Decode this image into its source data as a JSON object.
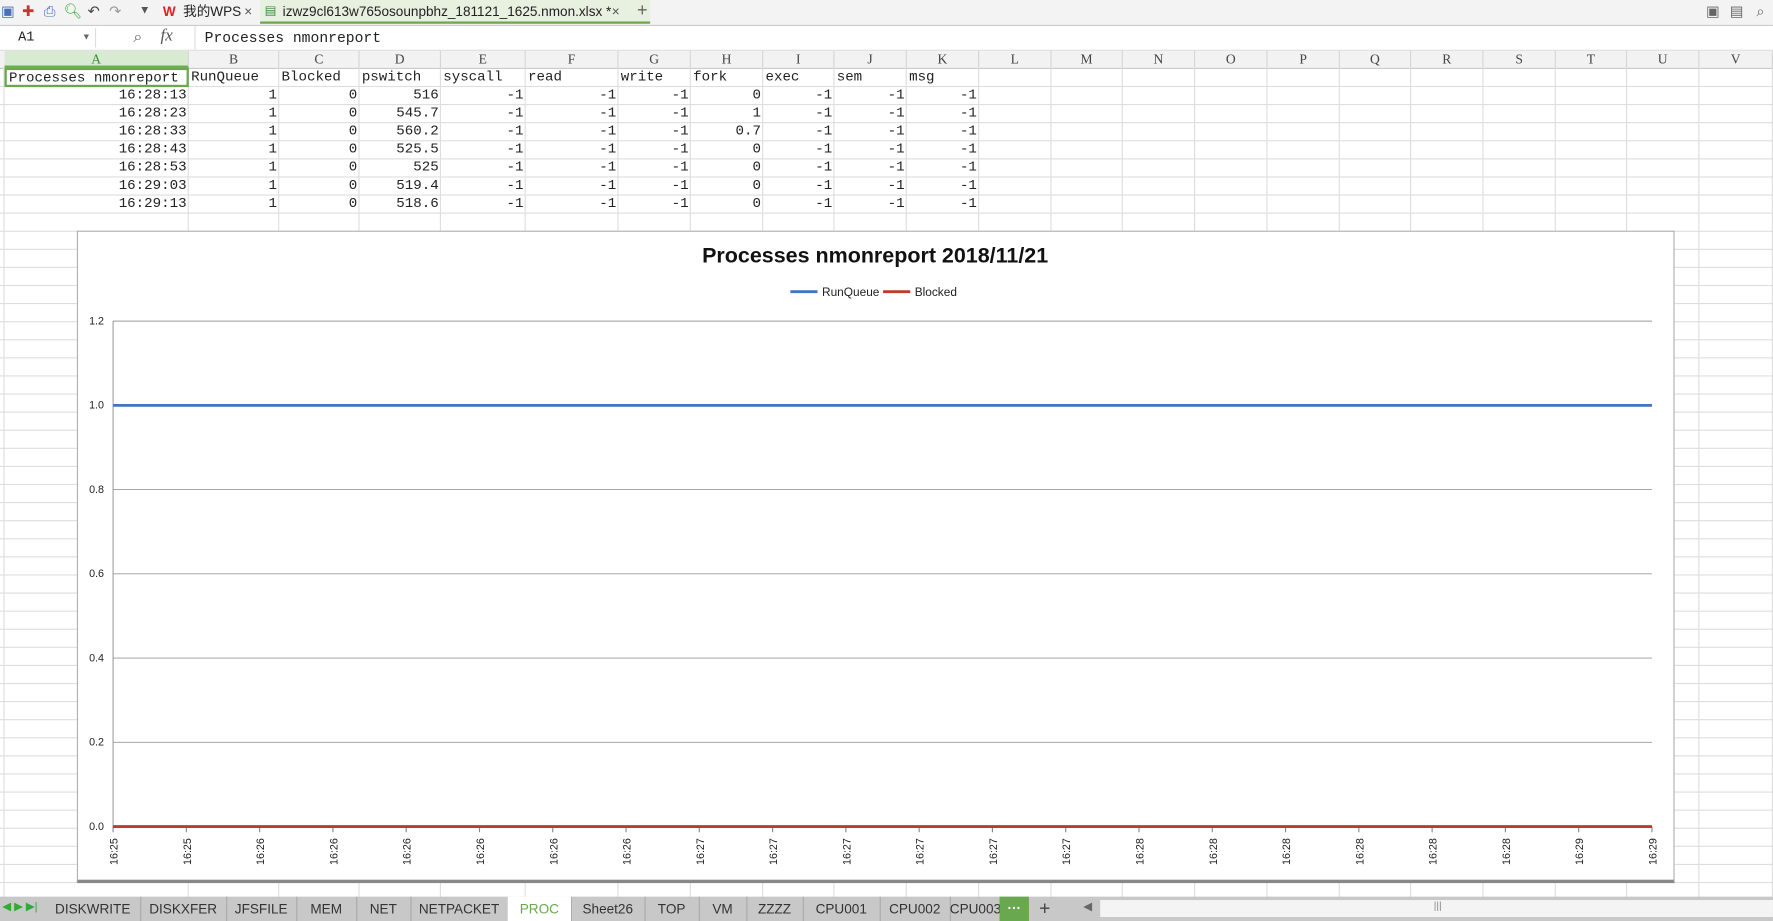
{
  "app": {
    "home_tab": "我的WPS",
    "doc_tab": "izwz9cl613w765osounpbhz_181121_1625.nmon.xlsx *"
  },
  "formula_bar": {
    "cell_ref": "A1",
    "fx": "fx",
    "value": "Processes nmonreport"
  },
  "columns": [
    "A",
    "B",
    "C",
    "D",
    "E",
    "F",
    "G",
    "H",
    "I",
    "J",
    "K",
    "L",
    "M",
    "N",
    "O",
    "P",
    "Q",
    "R",
    "S",
    "T",
    "U",
    "V"
  ],
  "headers": [
    "Processes nmonreport",
    "RunQueue",
    "Blocked",
    "pswitch",
    "syscall",
    "read",
    "write",
    "fork",
    "exec",
    "sem",
    "msg"
  ],
  "rows": [
    [
      "16:28:13",
      "1",
      "0",
      "516",
      "-1",
      "-1",
      "-1",
      "0",
      "-1",
      "-1",
      "-1"
    ],
    [
      "16:28:23",
      "1",
      "0",
      "545.7",
      "-1",
      "-1",
      "-1",
      "1",
      "-1",
      "-1",
      "-1"
    ],
    [
      "16:28:33",
      "1",
      "0",
      "560.2",
      "-1",
      "-1",
      "-1",
      "0.7",
      "-1",
      "-1",
      "-1"
    ],
    [
      "16:28:43",
      "1",
      "0",
      "525.5",
      "-1",
      "-1",
      "-1",
      "0",
      "-1",
      "-1",
      "-1"
    ],
    [
      "16:28:53",
      "1",
      "0",
      "525",
      "-1",
      "-1",
      "-1",
      "0",
      "-1",
      "-1",
      "-1"
    ],
    [
      "16:29:03",
      "1",
      "0",
      "519.4",
      "-1",
      "-1",
      "-1",
      "0",
      "-1",
      "-1",
      "-1"
    ],
    [
      "16:29:13",
      "1",
      "0",
      "518.6",
      "-1",
      "-1",
      "-1",
      "0",
      "-1",
      "-1",
      "-1"
    ]
  ],
  "chart_data": {
    "type": "line",
    "title": "Processes nmonreport  2018/11/21",
    "x": [
      "16:25",
      "16:25",
      "16:26",
      "16:26",
      "16:26",
      "16:26",
      "16:26",
      "16:26",
      "16:27",
      "16:27",
      "16:27",
      "16:27",
      "16:27",
      "16:27",
      "16:28",
      "16:28",
      "16:28",
      "16:28",
      "16:28",
      "16:28",
      "16:29",
      "16:29"
    ],
    "series": [
      {
        "name": "RunQueue",
        "color": "#4472c4",
        "values": [
          1,
          1,
          1,
          1,
          1,
          1,
          1,
          1,
          1,
          1,
          1,
          1,
          1,
          1,
          1,
          1,
          1,
          1,
          1,
          1,
          1,
          1
        ]
      },
      {
        "name": "Blocked",
        "color": "#c0392b",
        "values": [
          0,
          0,
          0,
          0,
          0,
          0,
          0,
          0,
          0,
          0,
          0,
          0,
          0,
          0,
          0,
          0,
          0,
          0,
          0,
          0,
          0,
          0
        ]
      }
    ],
    "ylim": [
      0,
      1.2
    ],
    "yticks": [
      "0.0",
      "0.2",
      "0.4",
      "0.6",
      "0.8",
      "1.0",
      "1.2"
    ],
    "grid": true,
    "legend": "top"
  },
  "sheet_tabs": [
    "DISKWRITE",
    "DISKXFER",
    "JFSFILE",
    "MEM",
    "NET",
    "NETPACKET",
    "PROC",
    "Sheet26",
    "TOP",
    "VM",
    "ZZZZ",
    "CPU001",
    "CPU002",
    "CPU003"
  ],
  "active_sheet": "PROC",
  "accent": "#6aa84f"
}
